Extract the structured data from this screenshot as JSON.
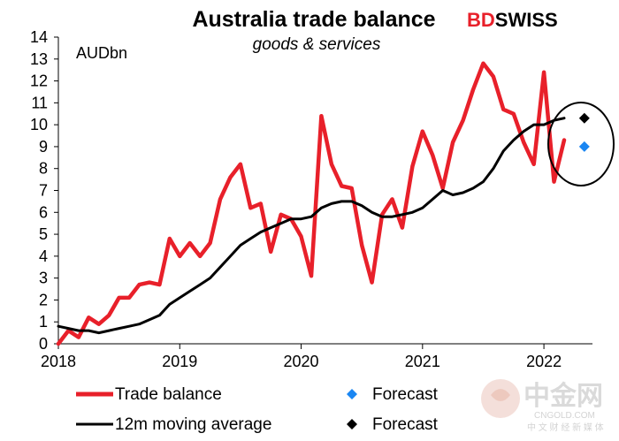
{
  "chart_data": {
    "type": "line",
    "title": "Australia trade balance",
    "subtitle": "goods & services",
    "ylabel": "AUDbn",
    "ylim": [
      0,
      14
    ],
    "yticks": [
      0,
      1,
      2,
      3,
      4,
      5,
      6,
      7,
      8,
      9,
      10,
      11,
      12,
      13,
      14
    ],
    "xlim": [
      2018.0,
      2022.4
    ],
    "xticks": [
      {
        "value": 2018,
        "label": "2018"
      },
      {
        "value": 2019,
        "label": "2019"
      },
      {
        "value": 2020,
        "label": "2020"
      },
      {
        "value": 2021,
        "label": "2021"
      },
      {
        "value": 2022,
        "label": "2022"
      }
    ],
    "series": [
      {
        "name": "Trade balance",
        "color": "#e8202a",
        "x": [
          2018.0,
          2018.0833,
          2018.1667,
          2018.25,
          2018.3333,
          2018.4167,
          2018.5,
          2018.5833,
          2018.6667,
          2018.75,
          2018.8333,
          2018.9167,
          2019.0,
          2019.0833,
          2019.1667,
          2019.25,
          2019.3333,
          2019.4167,
          2019.5,
          2019.5833,
          2019.6667,
          2019.75,
          2019.8333,
          2019.9167,
          2020.0,
          2020.0833,
          2020.1667,
          2020.25,
          2020.3333,
          2020.4167,
          2020.5,
          2020.5833,
          2020.6667,
          2020.75,
          2020.8333,
          2020.9167,
          2021.0,
          2021.0833,
          2021.1667,
          2021.25,
          2021.3333,
          2021.4167,
          2021.5,
          2021.5833,
          2021.6667,
          2021.75,
          2021.8333,
          2021.9167,
          2022.0,
          2022.0833,
          2022.1667
        ],
        "values": [
          0.0,
          0.6,
          0.3,
          1.2,
          0.9,
          1.3,
          2.1,
          2.1,
          2.7,
          2.8,
          2.7,
          4.8,
          4.0,
          4.6,
          4.0,
          4.6,
          6.6,
          7.6,
          8.2,
          6.2,
          6.4,
          4.2,
          5.9,
          5.7,
          4.9,
          3.1,
          10.4,
          8.2,
          7.2,
          7.1,
          4.5,
          2.8,
          5.9,
          6.6,
          5.3,
          8.1,
          9.7,
          8.6,
          7.1,
          9.2,
          10.2,
          11.6,
          12.8,
          12.2,
          10.7,
          10.5,
          9.2,
          8.2,
          12.4,
          7.4,
          9.3
        ]
      },
      {
        "name": "12m moving average",
        "color": "#000000",
        "x": [
          2018.0,
          2018.0833,
          2018.1667,
          2018.25,
          2018.3333,
          2018.4167,
          2018.5,
          2018.5833,
          2018.6667,
          2018.75,
          2018.8333,
          2018.9167,
          2019.0,
          2019.0833,
          2019.1667,
          2019.25,
          2019.3333,
          2019.4167,
          2019.5,
          2019.5833,
          2019.6667,
          2019.75,
          2019.8333,
          2019.9167,
          2020.0,
          2020.0833,
          2020.1667,
          2020.25,
          2020.3333,
          2020.4167,
          2020.5,
          2020.5833,
          2020.6667,
          2020.75,
          2020.8333,
          2020.9167,
          2021.0,
          2021.0833,
          2021.1667,
          2021.25,
          2021.3333,
          2021.4167,
          2021.5,
          2021.5833,
          2021.6667,
          2021.75,
          2021.8333,
          2021.9167,
          2022.0,
          2022.0833,
          2022.1667
        ],
        "values": [
          0.8,
          0.7,
          0.6,
          0.6,
          0.5,
          0.6,
          0.7,
          0.8,
          0.9,
          1.1,
          1.3,
          1.8,
          2.1,
          2.4,
          2.7,
          3.0,
          3.5,
          4.0,
          4.5,
          4.8,
          5.1,
          5.3,
          5.5,
          5.7,
          5.7,
          5.8,
          6.2,
          6.4,
          6.5,
          6.5,
          6.3,
          6.0,
          5.8,
          5.8,
          5.9,
          6.0,
          6.2,
          6.6,
          7.0,
          6.8,
          6.9,
          7.1,
          7.4,
          8.0,
          8.8,
          9.3,
          9.7,
          10.0,
          10.0,
          10.2,
          10.3
        ]
      }
    ],
    "forecasts": [
      {
        "name": "Forecast",
        "x": 2022.3333,
        "value": 9.0,
        "color": "#1a86f2",
        "marker": "diamond"
      },
      {
        "name": "Forecast",
        "x": 2022.3333,
        "value": 10.3,
        "color": "#000000",
        "marker": "diamond"
      }
    ],
    "annotation": "ellipse around latest readings",
    "legend": [
      {
        "label": "Trade balance",
        "kind": "line",
        "color": "#e8202a"
      },
      {
        "label": "Forecast",
        "kind": "diamond",
        "color": "#1a86f2"
      },
      {
        "label": "12m moving average",
        "kind": "line",
        "color": "#000000"
      },
      {
        "label": "Forecast",
        "kind": "diamond",
        "color": "#000000"
      }
    ],
    "grid": false
  },
  "branding": {
    "logo_prefix": "BD",
    "logo_suffix": "SWISS",
    "prefix_color": "#e8202a",
    "suffix_color": "#000000"
  },
  "watermark": {
    "main": "中金网",
    "domain": "CNGOLD.COM",
    "tagline": "中 文 财 经 新 媒 体"
  }
}
